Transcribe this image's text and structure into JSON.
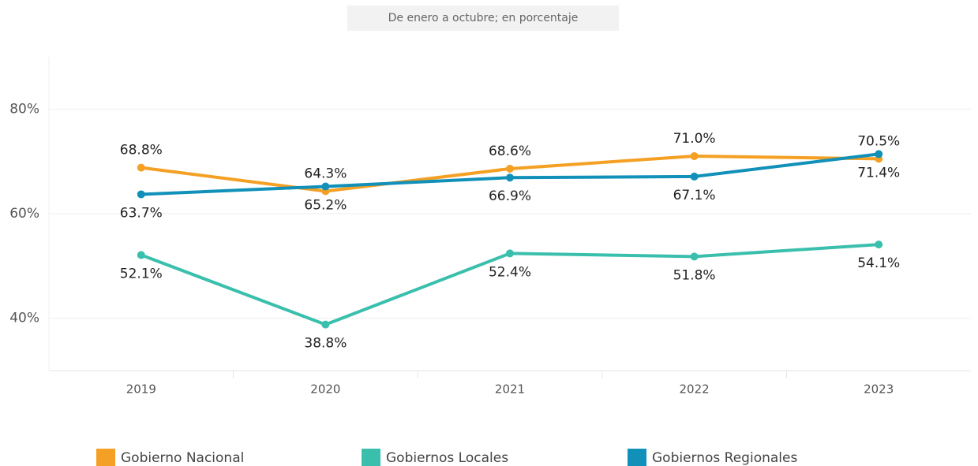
{
  "chart_data": {
    "type": "line",
    "subtitle": "De enero a octubre; en porcentaje",
    "categories": [
      "2019",
      "2020",
      "2021",
      "2022",
      "2023"
    ],
    "series": [
      {
        "name": "Gobierno Nacional",
        "color": "#f4a024",
        "values": [
          68.8,
          64.3,
          68.6,
          71.0,
          70.5
        ],
        "value_labels": [
          "68.8%",
          "64.3%",
          "68.6%",
          "71.0%",
          "70.5%"
        ]
      },
      {
        "name": "Gobiernos Locales",
        "color": "#3bbfad",
        "values": [
          52.1,
          38.8,
          52.4,
          51.8,
          54.1
        ],
        "value_labels": [
          "52.1%",
          "38.8%",
          "52.4%",
          "51.8%",
          "54.1%"
        ]
      },
      {
        "name": "Gobiernos Regionales",
        "color": "#1190b9",
        "values": [
          63.7,
          65.2,
          66.9,
          67.1,
          71.4
        ],
        "value_labels": [
          "63.7%",
          "65.2%",
          "66.9%",
          "67.1%",
          "71.4%"
        ]
      }
    ],
    "ylim": [
      30,
      90
    ],
    "yticks": [
      {
        "value": 40,
        "label": "40%"
      },
      {
        "value": 60,
        "label": "60%"
      },
      {
        "value": 80,
        "label": "80%"
      }
    ],
    "grid": true
  }
}
